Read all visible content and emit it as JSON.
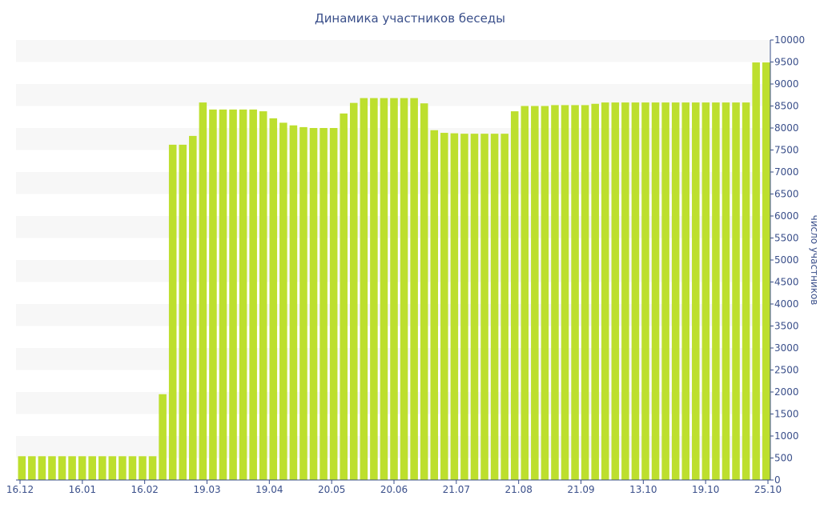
{
  "chart_data": {
    "type": "bar",
    "title": "Динамика участников беседы",
    "ylabel": "число участников",
    "ylim": [
      0,
      10000
    ],
    "ytick_step": 500,
    "x_tick_labels": [
      "16.12",
      "16.01",
      "16.02",
      "19.03",
      "19.04",
      "20.05",
      "20.06",
      "21.07",
      "21.08",
      "21.09",
      "13.10",
      "19.10",
      "25.10"
    ],
    "values": [
      540,
      540,
      540,
      540,
      540,
      540,
      540,
      540,
      540,
      540,
      540,
      540,
      540,
      540,
      1950,
      7620,
      7620,
      7820,
      8580,
      8420,
      8420,
      8420,
      8420,
      8420,
      8380,
      8220,
      8120,
      8060,
      8020,
      8000,
      8000,
      8000,
      8330,
      8570,
      8680,
      8680,
      8680,
      8680,
      8680,
      8680,
      8560,
      7950,
      7890,
      7880,
      7870,
      7870,
      7870,
      7870,
      7870,
      8380,
      8500,
      8500,
      8500,
      8520,
      8520,
      8520,
      8520,
      8550,
      8580,
      8580,
      8580,
      8580,
      8580,
      8580,
      8580,
      8580,
      8580,
      8580,
      8580,
      8580,
      8580,
      8580,
      8580,
      9490,
      9490
    ],
    "bar_color": "#bddf2e",
    "band_color": "#f7f7f7",
    "text_color": "#3a4f8a",
    "grid": true,
    "y_axis_position": "right"
  }
}
